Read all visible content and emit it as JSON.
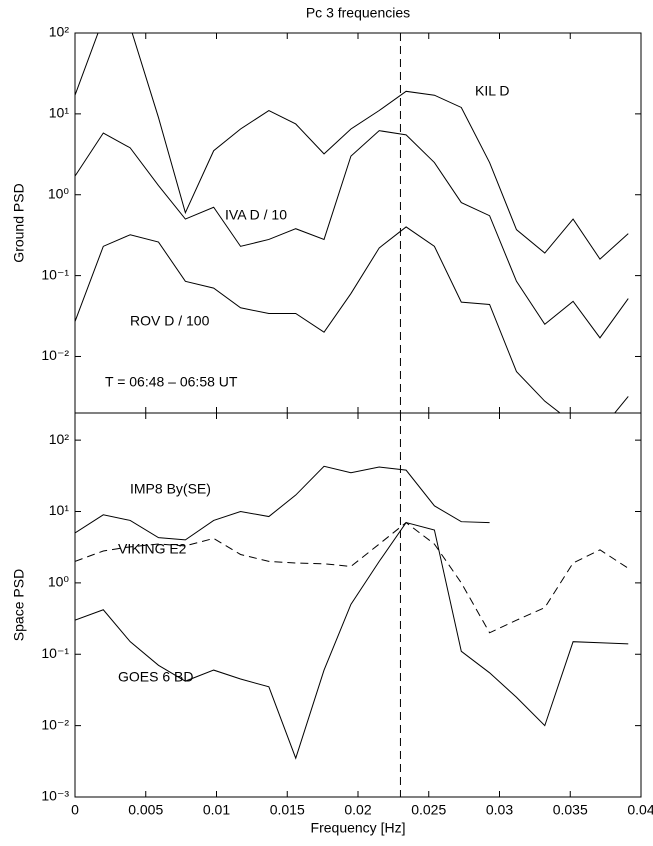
{
  "chart_data": [
    {
      "type": "line",
      "title": "Pc 3 frequencies",
      "ylabel": "Ground PSD",
      "log_y": true,
      "xtick_labels": false,
      "x": [
        0,
        0.002,
        0.0039,
        0.0059,
        0.0078,
        0.0098,
        0.0117,
        0.0137,
        0.0156,
        0.0176,
        0.0195,
        0.0215,
        0.0234,
        0.0254,
        0.0273,
        0.0293,
        0.0312,
        0.0332,
        0.0352,
        0.0371,
        0.0391
      ],
      "xlim": [
        0,
        0.04
      ],
      "xticks": [
        0,
        0.005,
        0.01,
        0.015,
        0.02,
        0.025,
        0.03,
        0.035,
        0.04
      ],
      "ylim": [
        0.002,
        100
      ],
      "yticks": [
        {
          "value": 0.01,
          "label": "10⁻²"
        },
        {
          "value": 0.1,
          "label": "10⁻¹"
        },
        {
          "value": 1,
          "label": "10⁰"
        },
        {
          "value": 10,
          "label": "10¹"
        },
        {
          "value": 100,
          "label": "10²"
        }
      ],
      "vline": 0.023,
      "annotation": "T = 06:48 – 06:58 UT",
      "series": [
        {
          "name": "KIL D",
          "color": "#000000",
          "dash": false,
          "values": [
            17,
            150,
            120,
            9,
            0.6,
            3.5,
            6.5,
            11,
            7.5,
            3.2,
            6.5,
            11,
            19,
            17,
            12,
            2.5,
            0.37,
            0.19,
            0.5,
            0.16,
            0.33
          ]
        },
        {
          "name": "IVA D / 10",
          "color": "#000000",
          "dash": false,
          "values": [
            1.7,
            5.8,
            3.8,
            1.3,
            0.5,
            0.7,
            0.23,
            0.28,
            0.38,
            0.28,
            3,
            6.2,
            5.5,
            2.5,
            0.8,
            0.55,
            0.085,
            0.025,
            0.048,
            0.017,
            0.052
          ]
        },
        {
          "name": "ROV D / 100",
          "color": "#000000",
          "dash": false,
          "values": [
            0.027,
            0.23,
            0.32,
            0.26,
            0.085,
            0.07,
            0.04,
            0.034,
            0.034,
            0.02,
            0.06,
            0.22,
            0.4,
            0.23,
            0.047,
            0.044,
            0.0065,
            0.0028,
            0.0015,
            0.0012,
            0.0032
          ]
        }
      ]
    },
    {
      "type": "line",
      "ylabel": "Space PSD",
      "xlabel": "Frequency [Hz]",
      "log_y": true,
      "xtick_labels": true,
      "x": [
        0,
        0.002,
        0.0039,
        0.0059,
        0.0078,
        0.0098,
        0.0117,
        0.0137,
        0.0156,
        0.0176,
        0.0195,
        0.0215,
        0.0234,
        0.0254,
        0.0273,
        0.0293,
        0.0312,
        0.0332,
        0.0352,
        0.0371,
        0.0391
      ],
      "xlim": [
        0,
        0.04
      ],
      "xticks": [
        0,
        0.005,
        0.01,
        0.015,
        0.02,
        0.025,
        0.03,
        0.035,
        0.04
      ],
      "ylim": [
        0.001,
        240
      ],
      "yticks": [
        {
          "value": 0.001,
          "label": "10⁻³"
        },
        {
          "value": 0.01,
          "label": "10⁻²"
        },
        {
          "value": 0.1,
          "label": "10⁻¹"
        },
        {
          "value": 1,
          "label": "10⁰"
        },
        {
          "value": 10,
          "label": "10¹"
        },
        {
          "value": 100,
          "label": "10²"
        }
      ],
      "vline": 0.023,
      "series": [
        {
          "name": "IMP8 By(SE)",
          "color": "#000000",
          "dash": false,
          "values": [
            5,
            9,
            7.5,
            4.3,
            4,
            7.5,
            10,
            8.5,
            17,
            43,
            35,
            42,
            38,
            12,
            7.2,
            7,
            null,
            null,
            null,
            null,
            null
          ]
        },
        {
          "name": "VIKING E2",
          "color": "#000000",
          "dash": true,
          "values": [
            2,
            2.8,
            3.2,
            3.5,
            3.3,
            4.2,
            2.5,
            2,
            1.9,
            1.85,
            1.7,
            3.5,
            7,
            3.5,
            1,
            0.2,
            0.3,
            0.45,
            1.9,
            2.9,
            1.6
          ]
        },
        {
          "name": "GOES 6 BD",
          "color": "#000000",
          "dash": false,
          "values": [
            0.3,
            0.42,
            0.15,
            0.07,
            0.042,
            0.06,
            0.045,
            0.035,
            0.0035,
            0.06,
            0.5,
            2,
            7,
            5.5,
            0.11,
            0.055,
            0.025,
            0.01,
            0.15,
            0.145,
            0.14
          ]
        }
      ]
    }
  ]
}
